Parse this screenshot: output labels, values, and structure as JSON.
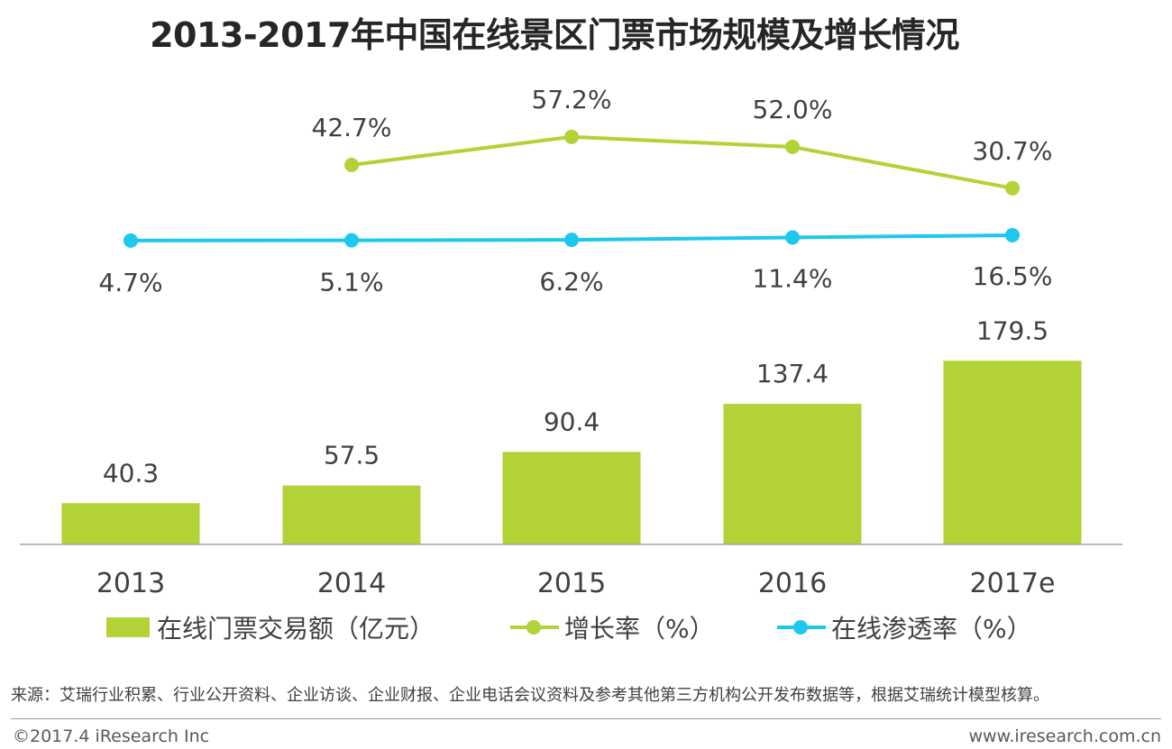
{
  "chart_data": {
    "type": "bar+line",
    "title": "2013-2017年中国在线景区门票市场规模及增长情况",
    "categories": [
      "2013",
      "2014",
      "2015",
      "2016",
      "2017e"
    ],
    "series": [
      {
        "name": "在线门票交易额（亿元）",
        "kind": "bar",
        "values": [
          40.3,
          57.5,
          90.4,
          137.4,
          179.5
        ],
        "labels": [
          "40.3",
          "57.5",
          "90.4",
          "137.4",
          "179.5"
        ],
        "color": "#b2d235"
      },
      {
        "name": "增长率（%）",
        "kind": "line",
        "values": [
          null,
          42.7,
          57.2,
          52.0,
          30.7
        ],
        "labels": [
          null,
          "42.7%",
          "57.2%",
          "52.0%",
          "30.7%"
        ],
        "color": "#b2d235"
      },
      {
        "name": "在线渗透率（%）",
        "kind": "line",
        "values": [
          4.7,
          5.1,
          6.2,
          11.4,
          16.5
        ],
        "labels": [
          "4.7%",
          "5.1%",
          "6.2%",
          "11.4%",
          "16.5%"
        ],
        "color": "#1ec8ec"
      }
    ],
    "legend_position": "bottom",
    "grid": false
  },
  "legend": {
    "bar_label": "在线门票交易额（亿元）",
    "growth_label": "增长率（%）",
    "penetration_label": "在线渗透率（%）"
  },
  "colors": {
    "green": "#b2d235",
    "cyan": "#1ec8ec"
  },
  "footer": {
    "source": "来源：艾瑞行业积累、行业公开资料、企业访谈、企业财报、企业电话会议资料及参考其他第三方机构公开发布数据等，根据艾瑞统计模型核算。",
    "copyright": "©2017.4 iResearch Inc",
    "website": "www.iresearch.com.cn"
  }
}
